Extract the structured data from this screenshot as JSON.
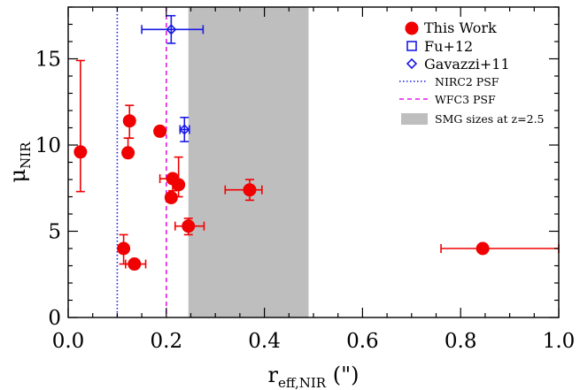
{
  "chart_data": {
    "type": "scatter",
    "xlabel": {
      "main": "r",
      "sub": "eff,NIR",
      "suffix": " (\")"
    },
    "ylabel": {
      "main": "μ",
      "sub": "NIR"
    },
    "xlim": [
      0.0,
      1.0
    ],
    "ylim": [
      0,
      18
    ],
    "x_ticks": [
      "0.0",
      "0.2",
      "0.4",
      "0.6",
      "0.8",
      "1.0"
    ],
    "x_tick_values": [
      0.0,
      0.2,
      0.4,
      0.6,
      0.8,
      1.0
    ],
    "y_ticks": [
      "0",
      "5",
      "10",
      "15"
    ],
    "y_tick_values": [
      0,
      5,
      10,
      15
    ],
    "grid": false,
    "legend_position": "top-right",
    "shaded_region": {
      "name": "SMG sizes at z=2.5",
      "x_range": [
        0.245,
        0.49
      ],
      "color": "#bebebe"
    },
    "vlines": [
      {
        "name": "NIRC2 PSF",
        "x": 0.1,
        "color": "#1a1ae6",
        "style": "dotted"
      },
      {
        "name": "WFC3 PSF",
        "x": 0.2,
        "color": "#e619e6",
        "style": "dashed"
      }
    ],
    "series": [
      {
        "name": "This Work",
        "marker": "filled-circle",
        "color": "#f00000",
        "points": [
          {
            "x": 0.025,
            "y": 9.6,
            "yerr": [
              7.3,
              14.9
            ]
          },
          {
            "x": 0.122,
            "y": 9.55,
            "yerr": [
              9.55,
              10.4
            ]
          },
          {
            "x": 0.125,
            "y": 11.4,
            "yerr": [
              10.4,
              12.3
            ]
          },
          {
            "x": 0.187,
            "y": 10.8
          },
          {
            "x": 0.113,
            "y": 4.0,
            "yerr": [
              3.1,
              4.8
            ]
          },
          {
            "x": 0.135,
            "y": 3.1,
            "xerr": [
              0.117,
              0.158
            ]
          },
          {
            "x": 0.213,
            "y": 8.05,
            "xerr": [
              0.187,
              0.225
            ],
            "yerr": [
              7.35,
              8.05
            ]
          },
          {
            "x": 0.225,
            "y": 7.7,
            "yerr": [
              7.0,
              9.3
            ]
          },
          {
            "x": 0.21,
            "y": 6.95
          },
          {
            "x": 0.245,
            "y": 5.3,
            "xerr": [
              0.218,
              0.277
            ],
            "yerr": [
              4.8,
              5.75
            ]
          },
          {
            "x": 0.37,
            "y": 7.4,
            "xerr": [
              0.32,
              0.395
            ],
            "yerr": [
              6.8,
              8.0
            ]
          },
          {
            "x": 0.845,
            "y": 4.0,
            "xerr": [
              0.76,
              1.0
            ]
          }
        ]
      },
      {
        "name": "Fu+12",
        "marker": "open-square",
        "color": "#1a1ae6",
        "points": []
      },
      {
        "name": "Gavazzi+11",
        "marker": "open-diamond",
        "color": "#1a1ae6",
        "points": [
          {
            "x": 0.21,
            "y": 16.7,
            "xerr": [
              0.15,
              0.275
            ],
            "yerr": [
              15.9,
              17.5
            ]
          },
          {
            "x": 0.237,
            "y": 10.9,
            "xerr": [
              0.228,
              0.247
            ],
            "yerr": [
              10.2,
              11.6
            ]
          }
        ]
      }
    ],
    "legend": [
      {
        "label": "This Work",
        "kind": "filled-circle",
        "color": "#f00000"
      },
      {
        "label": "Fu+12",
        "kind": "open-square",
        "color": "#1a1ae6"
      },
      {
        "label": "Gavazzi+11",
        "kind": "open-diamond",
        "color": "#1a1ae6"
      },
      {
        "label": "NIRC2 PSF",
        "kind": "dotted-line",
        "color": "#1a1ae6"
      },
      {
        "label": "WFC3 PSF",
        "kind": "dashed-line",
        "color": "#e619e6"
      },
      {
        "label": "SMG sizes at z=2.5",
        "kind": "filled-box",
        "color": "#bebebe"
      }
    ]
  }
}
